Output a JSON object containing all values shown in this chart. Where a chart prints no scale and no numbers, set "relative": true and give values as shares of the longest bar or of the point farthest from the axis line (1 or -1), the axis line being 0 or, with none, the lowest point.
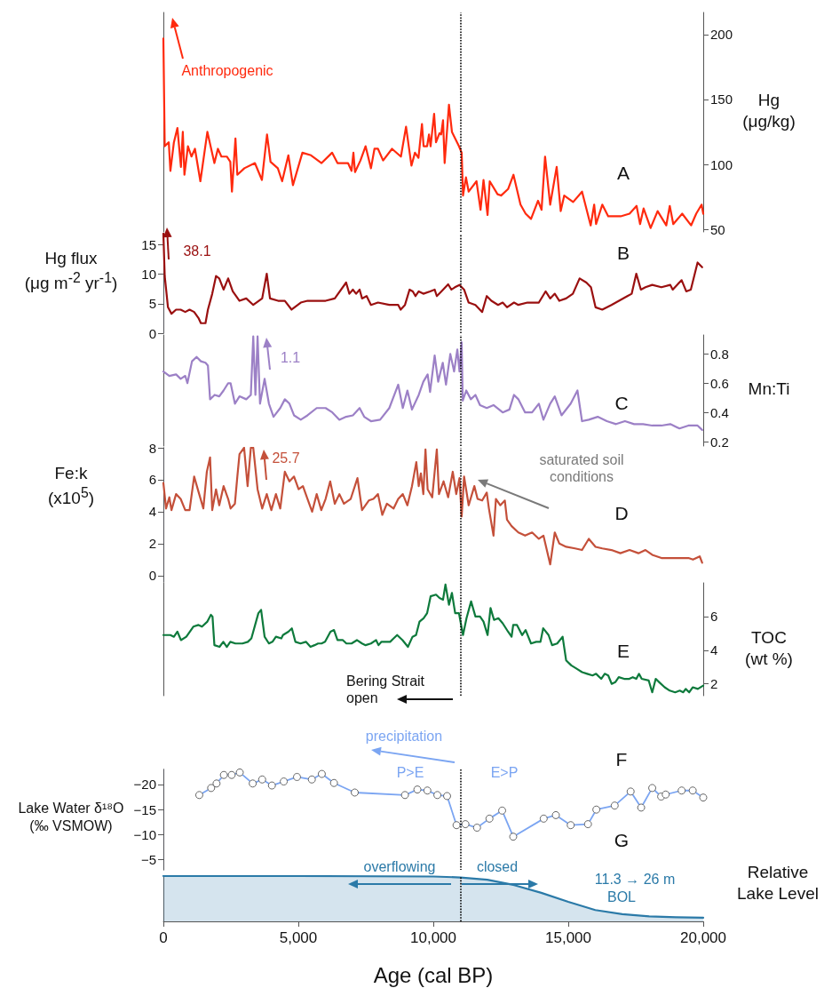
{
  "chart_data": [
    {
      "type": "line",
      "y2label": "Hg (μg/kg)",
      "xlim": [
        0,
        20000
      ],
      "y2lim": [
        48,
        217
      ],
      "y2ticks": [
        50,
        100,
        150,
        200
      ],
      "tick_labels": "y",
      "annotations": [
        "Anthropogenic",
        "A"
      ],
      "ref_lines": [
        {
          "axis": "x",
          "value": 11000,
          "color": "#000000",
          "line_style": "dotted"
        }
      ],
      "x": [
        0,
        50,
        200,
        260,
        390,
        520,
        650,
        720,
        780,
        910,
        1040,
        1170,
        1370,
        1630,
        1890,
        2020,
        2150,
        2350,
        2480,
        2540,
        2670,
        2740,
        3000,
        3390,
        3650,
        3840,
        3970,
        4240,
        4400,
        4630,
        4800,
        5150,
        5470,
        5860,
        6250,
        6450,
        6840,
        6970,
        7040,
        7100,
        7300,
        7490,
        7690,
        7820,
        7950,
        8140,
        8470,
        8800,
        8990,
        9190,
        9320,
        9450,
        9580,
        9640,
        9770,
        9840,
        9900,
        10030,
        10100,
        10230,
        10290,
        10360,
        10420,
        10580,
        10690,
        10950,
        11050,
        11100,
        11210,
        11310,
        11600,
        11750,
        11860,
        12010,
        12090,
        12380,
        12510,
        12770,
        12970,
        13230,
        13420,
        13620,
        13880,
        14010,
        14140,
        14330,
        14570,
        14720,
        14850,
        15180,
        15510,
        15830,
        15960,
        16030,
        16260,
        16480,
        16940,
        17270,
        17530,
        17660,
        17790,
        18050,
        18310,
        18630,
        18760,
        18890,
        19220,
        19550,
        19740,
        19940,
        20000
      ],
      "series": [
        {
          "color": "#ff2a0e",
          "axis": "y2",
          "values": [
            197,
            114,
            117,
            95,
            117,
            128,
            98,
            125,
            92,
            114,
            106,
            112,
            87,
            125,
            101,
            112,
            106,
            106,
            102,
            79,
            120,
            92,
            97,
            101,
            88,
            123,
            102,
            97,
            87,
            107,
            84,
            109,
            107,
            101,
            109,
            101,
            101,
            95,
            109,
            94,
            103,
            114,
            97,
            112,
            112,
            103,
            112,
            106,
            129,
            99,
            109,
            105,
            131,
            114,
            114,
            123,
            114,
            139,
            117,
            124,
            123,
            134,
            101,
            146,
            125,
            114,
            109,
            76,
            90,
            79,
            87,
            65,
            88,
            61,
            87,
            77,
            76,
            81,
            92,
            69,
            62,
            58,
            72,
            65,
            106,
            69,
            98,
            64,
            76,
            71,
            79,
            53,
            69,
            54,
            69,
            60,
            60,
            62,
            68,
            54,
            66,
            51,
            64,
            53,
            68,
            54,
            62,
            53,
            62,
            69,
            62
          ]
        }
      ]
    },
    {
      "type": "line",
      "ylabel": "Hg flux (μg m$^{-2}$ yr$^{-1}$)",
      "xlim": [
        0,
        20000
      ],
      "ylim": [
        0,
        16.9
      ],
      "yticks": [
        0,
        5,
        10,
        15
      ],
      "tick_labels": "y",
      "annotations": [
        "38.1",
        "B"
      ],
      "ref_lines": [
        {
          "axis": "x",
          "value": 11000,
          "color": "#000000",
          "line_style": "dotted"
        }
      ],
      "x": [
        0,
        50,
        170,
        300,
        470,
        640,
        810,
        970,
        1140,
        1310,
        1390,
        1560,
        1650,
        1810,
        1950,
        2070,
        2230,
        2400,
        2570,
        2820,
        3070,
        3330,
        3660,
        3830,
        3950,
        4250,
        4500,
        4750,
        5090,
        5340,
        6010,
        6350,
        6770,
        6890,
        7020,
        7140,
        7270,
        7360,
        7530,
        7690,
        7950,
        8370,
        8700,
        8790,
        8950,
        9120,
        9240,
        9340,
        9460,
        9630,
        9880,
        10050,
        10130,
        10300,
        10550,
        10670,
        10800,
        10970,
        11140,
        11310,
        11560,
        11810,
        11980,
        12150,
        12400,
        12570,
        12730,
        12990,
        13150,
        13490,
        13910,
        14160,
        14330,
        14500,
        14670,
        14920,
        15170,
        15420,
        15670,
        15840,
        16010,
        16260,
        16600,
        17190,
        17350,
        17520,
        17690,
        17860,
        18110,
        18450,
        18780,
        18870,
        19030,
        19200,
        19370,
        19540,
        19790,
        19960
      ],
      "series": [
        {
          "color": "#9a1010",
          "values": [
            16.9,
            9.7,
            4.4,
            3.3,
            4.0,
            4.0,
            3.6,
            4.0,
            3.6,
            2.5,
            1.7,
            1.7,
            4.0,
            6.7,
            9.7,
            9.3,
            7.4,
            9.3,
            7.1,
            5.5,
            5.9,
            4.8,
            5.9,
            10.1,
            5.9,
            5.5,
            5.5,
            4.0,
            5.2,
            5.5,
            5.5,
            5.9,
            8.6,
            6.7,
            7.4,
            6.7,
            7.4,
            5.9,
            6.3,
            4.8,
            5.2,
            4.8,
            4.8,
            4.0,
            4.8,
            7.4,
            7.1,
            6.3,
            7.1,
            6.7,
            7.1,
            7.4,
            6.3,
            7.1,
            8.3,
            7.4,
            7.8,
            8.2,
            7.4,
            5.2,
            4.8,
            3.6,
            6.3,
            5.5,
            4.8,
            5.2,
            4.4,
            5.2,
            4.8,
            5.2,
            5.2,
            7.1,
            5.9,
            6.7,
            5.5,
            5.9,
            6.7,
            9.3,
            8.6,
            7.8,
            4.4,
            4.0,
            4.8,
            6.3,
            6.7,
            10.1,
            7.4,
            7.8,
            8.2,
            7.8,
            8.2,
            7.4,
            8.2,
            9.0,
            7.1,
            7.4,
            12.0,
            11.2
          ]
        }
      ]
    },
    {
      "type": "line",
      "y2label": "Mn:Ti",
      "xlim": [
        0,
        20000
      ],
      "y2lim": [
        0.17,
        0.93
      ],
      "y2ticks": [
        0.2,
        0.4,
        0.6,
        0.8
      ],
      "tick_labels": "y",
      "annotations": [
        "1.1",
        "C"
      ],
      "ref_lines": [
        {
          "axis": "x",
          "value": 11000,
          "color": "#000000",
          "line_style": "dotted"
        }
      ],
      "x": [
        0,
        220,
        470,
        640,
        810,
        890,
        1060,
        1230,
        1390,
        1560,
        1650,
        1730,
        1900,
        2070,
        2230,
        2400,
        2490,
        2650,
        2820,
        3070,
        3240,
        3330,
        3410,
        3490,
        3580,
        3750,
        3910,
        4080,
        4330,
        4500,
        4670,
        4840,
        5090,
        5340,
        5680,
        6010,
        6260,
        6520,
        6770,
        7020,
        7270,
        7440,
        7690,
        8030,
        8370,
        8700,
        8870,
        9040,
        9210,
        9460,
        9630,
        9790,
        9880,
        10050,
        10180,
        10350,
        10470,
        10630,
        10770,
        10890,
        10970,
        11050,
        11090,
        11220,
        11390,
        11560,
        11730,
        11980,
        12230,
        12570,
        12820,
        12990,
        13150,
        13400,
        13660,
        13910,
        14080,
        14330,
        14500,
        14750,
        15090,
        15340,
        15510,
        15760,
        16090,
        16430,
        16770,
        17100,
        17440,
        17770,
        18110,
        18450,
        18780,
        19120,
        19450,
        19790,
        19960
      ],
      "series": [
        {
          "color": "#9c80c6",
          "axis": "y2",
          "values": [
            0.68,
            0.65,
            0.66,
            0.63,
            0.65,
            0.6,
            0.75,
            0.78,
            0.75,
            0.74,
            0.72,
            0.49,
            0.52,
            0.51,
            0.55,
            0.6,
            0.6,
            0.46,
            0.51,
            0.49,
            0.52,
            0.92,
            0.52,
            0.92,
            0.46,
            0.63,
            0.46,
            0.37,
            0.43,
            0.49,
            0.46,
            0.38,
            0.35,
            0.38,
            0.43,
            0.43,
            0.4,
            0.35,
            0.37,
            0.38,
            0.43,
            0.37,
            0.34,
            0.35,
            0.43,
            0.59,
            0.43,
            0.55,
            0.42,
            0.52,
            0.61,
            0.66,
            0.54,
            0.79,
            0.61,
            0.74,
            0.59,
            0.8,
            0.68,
            0.83,
            0.68,
            0.88,
            0.48,
            0.55,
            0.49,
            0.52,
            0.45,
            0.43,
            0.45,
            0.4,
            0.42,
            0.52,
            0.49,
            0.4,
            0.4,
            0.46,
            0.35,
            0.46,
            0.51,
            0.38,
            0.46,
            0.55,
            0.34,
            0.35,
            0.37,
            0.34,
            0.32,
            0.34,
            0.32,
            0.32,
            0.31,
            0.31,
            0.32,
            0.29,
            0.31,
            0.31,
            0.28
          ]
        }
      ]
    },
    {
      "type": "line",
      "ylabel": "Fe:k (x10$^{5}$)",
      "xlim": [
        0,
        20000
      ],
      "ylim": [
        -0.4,
        8
      ],
      "yticks": [
        0,
        2,
        4,
        6,
        8
      ],
      "tick_labels": "y",
      "annotations": [
        "25.7",
        "saturated soil conditions",
        "D"
      ],
      "ref_lines": [
        {
          "axis": "x",
          "value": 11000,
          "color": "#000000",
          "line_style": "dotted"
        }
      ],
      "x": [
        0,
        100,
        220,
        300,
        470,
        640,
        810,
        970,
        1140,
        1310,
        1480,
        1610,
        1730,
        1810,
        1950,
        2070,
        2230,
        2400,
        2490,
        2650,
        2740,
        2820,
        2990,
        3120,
        3240,
        3330,
        3490,
        3660,
        3830,
        4000,
        4170,
        4330,
        4500,
        4670,
        4840,
        5010,
        5170,
        5340,
        5510,
        5680,
        5850,
        6010,
        6180,
        6350,
        6520,
        6690,
        6940,
        7190,
        7360,
        7610,
        7780,
        7950,
        8110,
        8280,
        8530,
        8700,
        8870,
        9040,
        9210,
        9370,
        9460,
        9540,
        9630,
        9710,
        9790,
        9960,
        10130,
        10210,
        10380,
        10550,
        10720,
        10850,
        10970,
        11050,
        11140,
        11310,
        11520,
        11640,
        11810,
        11980,
        12060,
        12230,
        12320,
        12480,
        12650,
        12730,
        12900,
        13150,
        13400,
        13660,
        13910,
        14080,
        14330,
        14500,
        14670,
        14920,
        15250,
        15510,
        15760,
        16010,
        16260,
        16600,
        16930,
        17270,
        17600,
        17860,
        18110,
        18450,
        18780,
        19120,
        19450,
        19620,
        19870,
        19960
      ],
      "series": [
        {
          "color": "#c4503a",
          "values": [
            5.8,
            4.2,
            4.9,
            4.1,
            5.1,
            4.8,
            4.1,
            4.1,
            6.2,
            5.2,
            4.2,
            6.5,
            7.4,
            4.1,
            5.4,
            4.4,
            5.6,
            4.8,
            4.2,
            4.5,
            6.2,
            7.6,
            8.0,
            5.6,
            8.0,
            8.0,
            5.4,
            4.2,
            5.1,
            4.1,
            5.1,
            4.2,
            6.5,
            5.9,
            6.2,
            5.4,
            5.6,
            4.8,
            4.0,
            5.1,
            4.1,
            4.8,
            5.9,
            4.5,
            5.1,
            4.5,
            4.8,
            6.1,
            4.1,
            4.7,
            4.8,
            5.1,
            3.8,
            4.5,
            4.2,
            4.8,
            5.1,
            4.4,
            5.6,
            7.1,
            5.6,
            6.4,
            5.1,
            7.9,
            5.4,
            4.9,
            7.9,
            5.1,
            5.9,
            4.9,
            6.5,
            5.1,
            6.1,
            3.7,
            6.2,
            4.4,
            5.6,
            4.8,
            4.7,
            5.2,
            4.2,
            2.5,
            4.8,
            4.4,
            4.7,
            3.5,
            3.1,
            2.7,
            2.5,
            2.7,
            2.3,
            2.5,
            0.7,
            2.7,
            2.0,
            1.8,
            1.7,
            1.6,
            2.3,
            1.8,
            1.7,
            1.6,
            1.4,
            1.6,
            1.4,
            1.6,
            1.3,
            1.1,
            1.1,
            1.1,
            1.1,
            1.0,
            1.2,
            0.8
          ]
        }
      ]
    },
    {
      "type": "line",
      "y2label": "TOC (wt %)",
      "xlim": [
        0,
        20000
      ],
      "y2lim": [
        1.3,
        8
      ],
      "y2ticks": [
        2,
        4,
        6
      ],
      "tick_labels": "y",
      "annotations": [
        "Bering Strait open",
        "E"
      ],
      "ref_lines": [
        {
          "axis": "x",
          "value": 11000,
          "color": "#000000",
          "line_style": "dotted"
        }
      ],
      "x": [
        0,
        260,
        390,
        520,
        650,
        850,
        1110,
        1300,
        1430,
        1630,
        1760,
        1820,
        1890,
        2080,
        2220,
        2350,
        2480,
        2670,
        2930,
        3130,
        3260,
        3520,
        3620,
        3750,
        3910,
        4040,
        4170,
        4370,
        4430,
        4630,
        4760,
        4890,
        5080,
        5280,
        5450,
        5600,
        5730,
        5860,
        5990,
        6190,
        6320,
        6450,
        6650,
        6780,
        6970,
        7170,
        7360,
        7490,
        7690,
        7880,
        7970,
        8080,
        8400,
        8530,
        8660,
        8860,
        9060,
        9230,
        9360,
        9490,
        9640,
        9770,
        9900,
        10100,
        10230,
        10360,
        10450,
        10580,
        10690,
        10810,
        10950,
        11100,
        11230,
        11400,
        11560,
        11730,
        11860,
        12010,
        12120,
        12250,
        12410,
        12570,
        12770,
        12900,
        12960,
        13100,
        13290,
        13420,
        13620,
        13810,
        13970,
        14070,
        14270,
        14400,
        14590,
        14790,
        14920,
        15110,
        15310,
        15510,
        15700,
        15900,
        16030,
        16220,
        16350,
        16480,
        16610,
        16740,
        16870,
        17070,
        17260,
        17390,
        17520,
        17620,
        17720,
        17980,
        18110,
        18240,
        18370,
        18570,
        18760,
        18960,
        19130,
        19260,
        19350,
        19480,
        19610,
        19800,
        20000
      ],
      "series": [
        {
          "color": "#0e7a3c",
          "axis": "y2",
          "values": [
            4.9,
            4.9,
            4.8,
            5.1,
            4.6,
            4.8,
            5.4,
            5.5,
            5.4,
            5.7,
            6.1,
            6.0,
            4.3,
            4.2,
            4.5,
            4.2,
            4.5,
            4.4,
            4.4,
            4.5,
            4.7,
            6.2,
            6.4,
            4.8,
            4.4,
            4.5,
            4.8,
            4.7,
            4.9,
            5.1,
            5.3,
            4.5,
            4.4,
            4.5,
            4.2,
            4.3,
            4.4,
            4.4,
            4.5,
            5.1,
            5.2,
            4.6,
            4.6,
            4.4,
            4.4,
            4.6,
            4.4,
            4.3,
            4.4,
            4.6,
            4.3,
            4.5,
            4.5,
            4.7,
            4.9,
            4.6,
            4.2,
            4.8,
            4.9,
            5.7,
            5.9,
            6.2,
            7.2,
            7.3,
            7.1,
            7.0,
            7.9,
            6.7,
            7.4,
            6.2,
            6.2,
            4.9,
            5.9,
            6.9,
            6.0,
            6.0,
            5.7,
            4.9,
            6.5,
            5.8,
            5.9,
            5.6,
            5.1,
            4.8,
            5.5,
            5.5,
            4.9,
            5.2,
            4.4,
            4.5,
            4.5,
            5.3,
            4.9,
            4.3,
            4.4,
            4.8,
            3.4,
            3.1,
            2.9,
            2.7,
            2.6,
            2.5,
            2.6,
            2.3,
            2.6,
            2.5,
            2.0,
            2.1,
            2.4,
            2.3,
            2.3,
            2.4,
            2.3,
            2.6,
            2.3,
            2.2,
            1.5,
            2.3,
            2.1,
            1.8,
            1.6,
            1.5,
            1.6,
            1.5,
            1.7,
            1.5,
            1.8,
            1.7,
            1.9
          ]
        }
      ]
    },
    {
      "type": "line",
      "ylabel": "Lake Water δ¹⁸O (‰ VSMOW)",
      "xlim": [
        0,
        20000
      ],
      "ylim": [
        -3,
        -23
      ],
      "yticks": [
        {
          "value": -20,
          "label": "−20"
        },
        {
          "value": -15,
          "label": "−15"
        },
        {
          "value": -10,
          "label": "−10"
        },
        {
          "value": -5,
          "label": "−5"
        }
      ],
      "tick_labels": "y",
      "marker": "circle",
      "annotations": [
        "precipitation",
        "P>E",
        "E>P",
        "F"
      ],
      "ref_lines": [
        {
          "axis": "x",
          "value": 11000,
          "color": "#000000",
          "line_style": "dotted"
        }
      ],
      "x": [
        1330,
        1770,
        1970,
        2240,
        2530,
        2830,
        3310,
        3660,
        4020,
        4460,
        4950,
        5500,
        5870,
        6320,
        7090,
        8950,
        9410,
        9780,
        10150,
        10510,
        10860,
        11190,
        11620,
        12080,
        12550,
        12960,
        14090,
        14540,
        15090,
        15730,
        16040,
        16720,
        17310,
        17700,
        18110,
        18440,
        18610,
        19200,
        19610,
        20000
      ],
      "series": [
        {
          "color": "#7ba5f2",
          "values": [
            -17.9,
            -19.3,
            -20.2,
            -21.9,
            -21.9,
            -22.4,
            -20.2,
            -21.0,
            -19.8,
            -20.6,
            -21.5,
            -21.0,
            -22.1,
            -20.3,
            -18.4,
            -17.9,
            -19.0,
            -18.8,
            -17.9,
            -17.7,
            -11.9,
            -12.1,
            -11.4,
            -13.2,
            -14.8,
            -9.6,
            -13.2,
            -13.9,
            -11.9,
            -12.1,
            -15.0,
            -15.8,
            -18.6,
            -15.4,
            -19.3,
            -17.6,
            -18.0,
            -18.8,
            -18.8,
            -17.4
          ]
        }
      ]
    },
    {
      "type": "area",
      "relative": true,
      "y2label": "Relative Lake Level",
      "xlabel": "Age (cal BP)",
      "xlim": [
        0,
        20000
      ],
      "xticks": [
        0,
        {
          "value": 5000,
          "label": "5,000"
        },
        {
          "value": 10000,
          "label": "10,000"
        },
        {
          "value": 15000,
          "label": "15,000"
        },
        {
          "value": 20000,
          "label": "20,000"
        }
      ],
      "tick_labels": "x",
      "annotations": [
        "G",
        "overflowing",
        "closed",
        "11.3 → 26 m",
        "BOL"
      ],
      "ref_lines": [
        {
          "axis": "x",
          "value": 11000,
          "color": "#000000",
          "line_style": "dotted"
        }
      ],
      "x": [
        0,
        5000,
        10000,
        11000,
        12000,
        13000,
        14000,
        15000,
        16000,
        17000,
        18000,
        19000,
        20000
      ],
      "series": [
        {
          "color": "#2b7aa8",
          "axis": "y2",
          "values": [
            1,
            1,
            0.99,
            0.97,
            0.92,
            0.8,
            0.63,
            0.43,
            0.25,
            0.16,
            0.11,
            0.09,
            0.08
          ]
        }
      ]
    }
  ]
}
